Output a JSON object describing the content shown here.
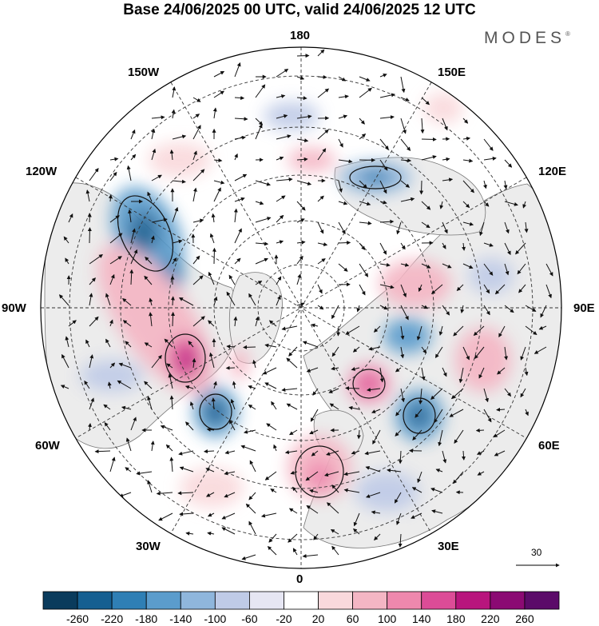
{
  "title": "Base 24/06/2025 00 UTC, valid 24/06/2025 12 UTC",
  "brand": {
    "name": "MODES",
    "mark": "®"
  },
  "map": {
    "projection": "north polar stereographic",
    "longitude_labels": {
      "top": "180",
      "bottom": "0",
      "left": "90W",
      "right": "90E",
      "upper_left_1": "150W",
      "upper_left_2": "120W",
      "upper_right_1": "150E",
      "upper_right_2": "120E",
      "lower_left_1": "60W",
      "lower_left_2": "30W",
      "lower_right_1": "60E",
      "lower_right_2": "30E"
    },
    "reference_vector_label": "30",
    "colors": {
      "negative_strong": "#1f5f94",
      "negative_weak": "#c9cfe6",
      "positive_weak": "#f4c7cf",
      "positive_strong": "#c2247a",
      "land": "#ececec"
    }
  },
  "colorbar": {
    "tick_labels": [
      "-260",
      "-220",
      "-180",
      "-140",
      "-100",
      "-60",
      "-20",
      "20",
      "60",
      "100",
      "140",
      "180",
      "220",
      "260"
    ],
    "segment_colors": [
      "#0a3b5c",
      "#155f91",
      "#2f7fb5",
      "#5b9ccc",
      "#8fb6dc",
      "#bfcbe7",
      "#e6e6f3",
      "#ffffff",
      "#f9d9dc",
      "#f4b6c4",
      "#ee88ad",
      "#dc4c97",
      "#b8157d",
      "#8b0a73",
      "#5b0b69"
    ]
  }
}
